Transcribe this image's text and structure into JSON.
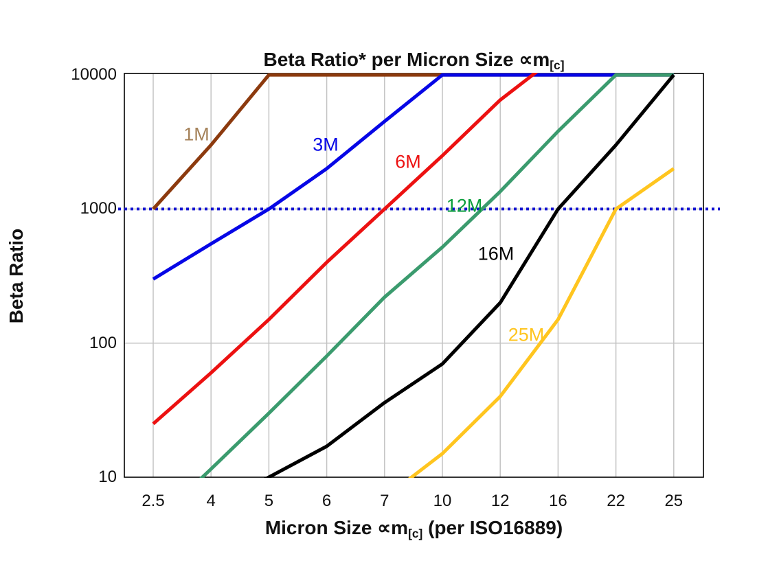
{
  "chart_data": {
    "type": "line",
    "title": {
      "main": "Beta Ratio* per Micron Size ∝m",
      "subscript": "[c]"
    },
    "x_axis": {
      "label_pre": "Micron Size ∝m",
      "label_sub": "[c]",
      "label_post": " (per ISO16889)",
      "categories": [
        "2.5",
        "4",
        "5",
        "6",
        "7",
        "10",
        "12",
        "16",
        "22",
        "25"
      ]
    },
    "y_axis": {
      "label": "Beta Ratio",
      "scale": "log",
      "range": [
        10,
        10000
      ],
      "tick_labels": [
        "10000",
        "1000",
        "100",
        "10"
      ],
      "tick_values": [
        10000,
        1000,
        100,
        10
      ]
    },
    "reference_line": {
      "value": 1000,
      "style": "dotted",
      "color": "#1212d2"
    },
    "grid": {
      "vertical": true,
      "horizontal_values": [
        1000,
        100
      ],
      "color": "#c3c3c3"
    },
    "series": [
      {
        "name": "1M",
        "color": "#8c3a0e",
        "label_color": "#a5825a",
        "values": [
          1000,
          3000,
          10000,
          10000,
          10000,
          10000,
          10000,
          10000,
          10000,
          10000
        ]
      },
      {
        "name": "3M",
        "color": "#0606e6",
        "label_color": "#0606e6",
        "values": [
          300,
          550,
          1000,
          2000,
          4500,
          10000,
          10000,
          10000,
          10000,
          10000
        ]
      },
      {
        "name": "6M",
        "color": "#ec1111",
        "label_color": "#ec1111",
        "values": [
          25,
          60,
          150,
          400,
          1000,
          2500,
          6500,
          14000,
          null,
          null
        ]
      },
      {
        "name": "12M",
        "color": "#3b9b6e",
        "label_color": "#0b9e3c",
        "values": [
          4.5,
          11.5,
          30,
          80,
          220,
          520,
          1350,
          3800,
          10000,
          10000
        ]
      },
      {
        "name": "16M",
        "color": "#000000",
        "label_color": "#000000",
        "values": [
          null,
          6,
          10,
          17,
          36,
          70,
          200,
          1000,
          3000,
          10000
        ]
      },
      {
        "name": "25M",
        "color": "#ffc51f",
        "label_color": "#ffc51f",
        "values": [
          null,
          null,
          null,
          null,
          7,
          15,
          40,
          150,
          1000,
          2000
        ]
      }
    ]
  }
}
